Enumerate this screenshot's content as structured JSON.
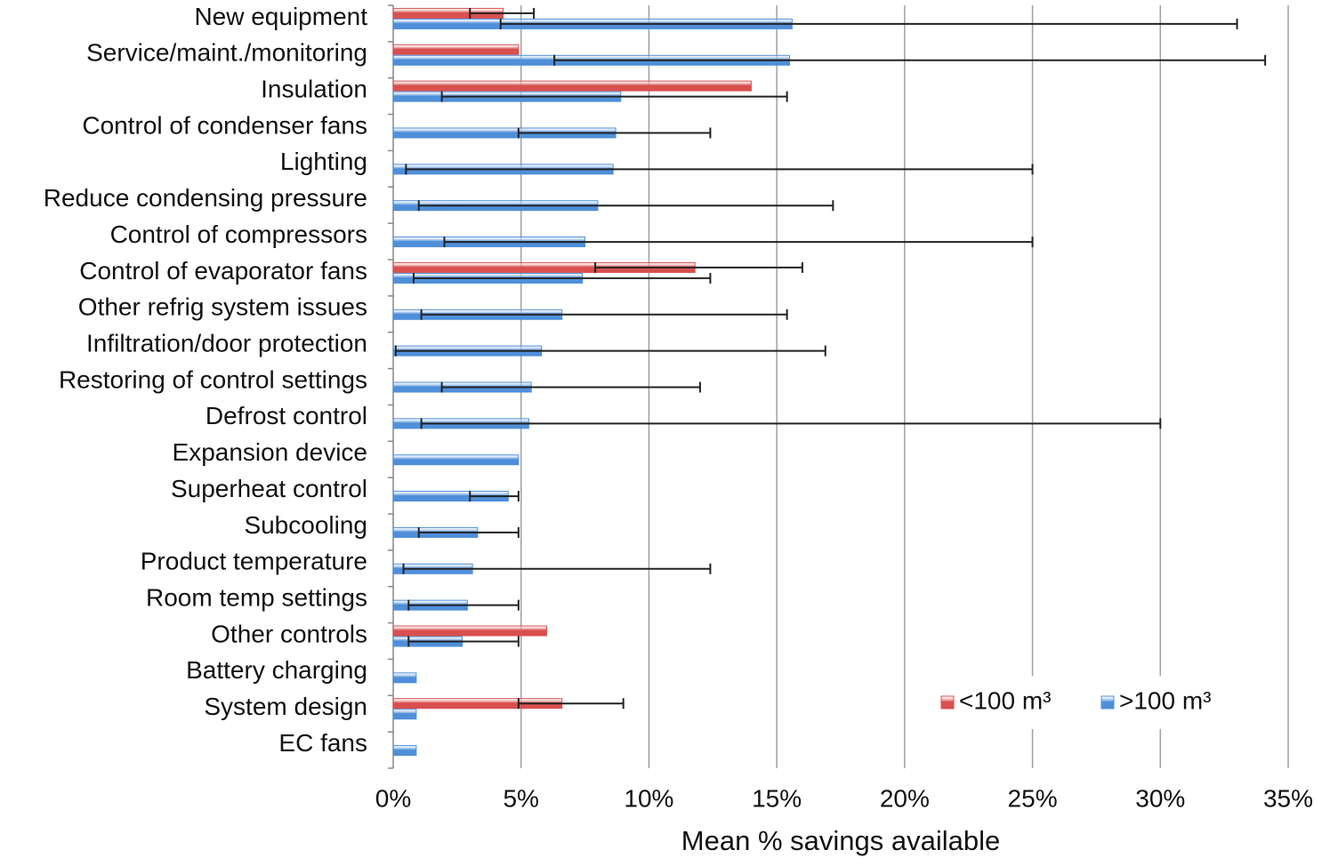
{
  "chart_data": {
    "type": "hbar",
    "x_label": "Mean % savings available",
    "categories": [
      "New equipment",
      "Service/maint./monitoring",
      "Insulation",
      "Control of condenser fans",
      "Lighting",
      "Reduce condensing pressure",
      "Control of compressors",
      "Control of evaporator fans",
      "Other refrig system issues",
      "Infiltration/door protection",
      "Restoring of control settings",
      "Defrost control",
      "Expansion device",
      "Superheat control",
      "Subcooling",
      "Product temperature",
      "Room temp settings",
      "Other controls",
      "Battery charging",
      "System design",
      "EC fans"
    ],
    "series": [
      {
        "name": "<100 m³",
        "color": "#d94f4f",
        "values": [
          4.3,
          4.9,
          14.0,
          null,
          null,
          null,
          null,
          11.8,
          null,
          null,
          null,
          null,
          null,
          null,
          null,
          null,
          null,
          6.0,
          null,
          6.6,
          null
        ],
        "error_low": [
          3.0,
          null,
          null,
          null,
          null,
          null,
          null,
          7.9,
          null,
          null,
          null,
          null,
          null,
          null,
          null,
          null,
          null,
          null,
          null,
          4.9,
          null
        ],
        "error_high": [
          5.5,
          null,
          null,
          null,
          null,
          null,
          null,
          16.0,
          null,
          null,
          null,
          null,
          null,
          null,
          null,
          null,
          null,
          null,
          null,
          9.0,
          null
        ]
      },
      {
        "name": ">100 m³",
        "color": "#4f8fd9",
        "values": [
          15.6,
          15.5,
          8.9,
          8.7,
          8.6,
          8.0,
          7.5,
          7.4,
          6.6,
          5.8,
          5.4,
          5.3,
          4.9,
          4.5,
          3.3,
          3.1,
          2.9,
          2.7,
          0.9,
          0.9,
          0.9
        ],
        "error_low": [
          4.2,
          6.3,
          1.9,
          4.9,
          0.5,
          1.0,
          2.0,
          0.8,
          1.1,
          0.1,
          1.9,
          1.1,
          null,
          3.0,
          1.0,
          0.4,
          0.6,
          0.6,
          null,
          null,
          null
        ],
        "error_high": [
          33.0,
          34.1,
          15.4,
          12.4,
          25.0,
          17.2,
          25.0,
          12.4,
          15.4,
          16.9,
          12.0,
          30.0,
          null,
          4.9,
          4.9,
          12.4,
          4.9,
          4.9,
          null,
          null,
          null
        ]
      }
    ],
    "xlim": [
      0,
      35
    ],
    "xticks": [
      {
        "value": 0,
        "label": "0%"
      },
      {
        "value": 5,
        "label": "5%"
      },
      {
        "value": 10,
        "label": "10%"
      },
      {
        "value": 15,
        "label": "15%"
      },
      {
        "value": 20,
        "label": "20%"
      },
      {
        "value": 25,
        "label": "25%"
      },
      {
        "value": 30,
        "label": "30%"
      },
      {
        "value": 35,
        "label": "35%"
      }
    ],
    "grid": true,
    "legend": "lower right"
  }
}
